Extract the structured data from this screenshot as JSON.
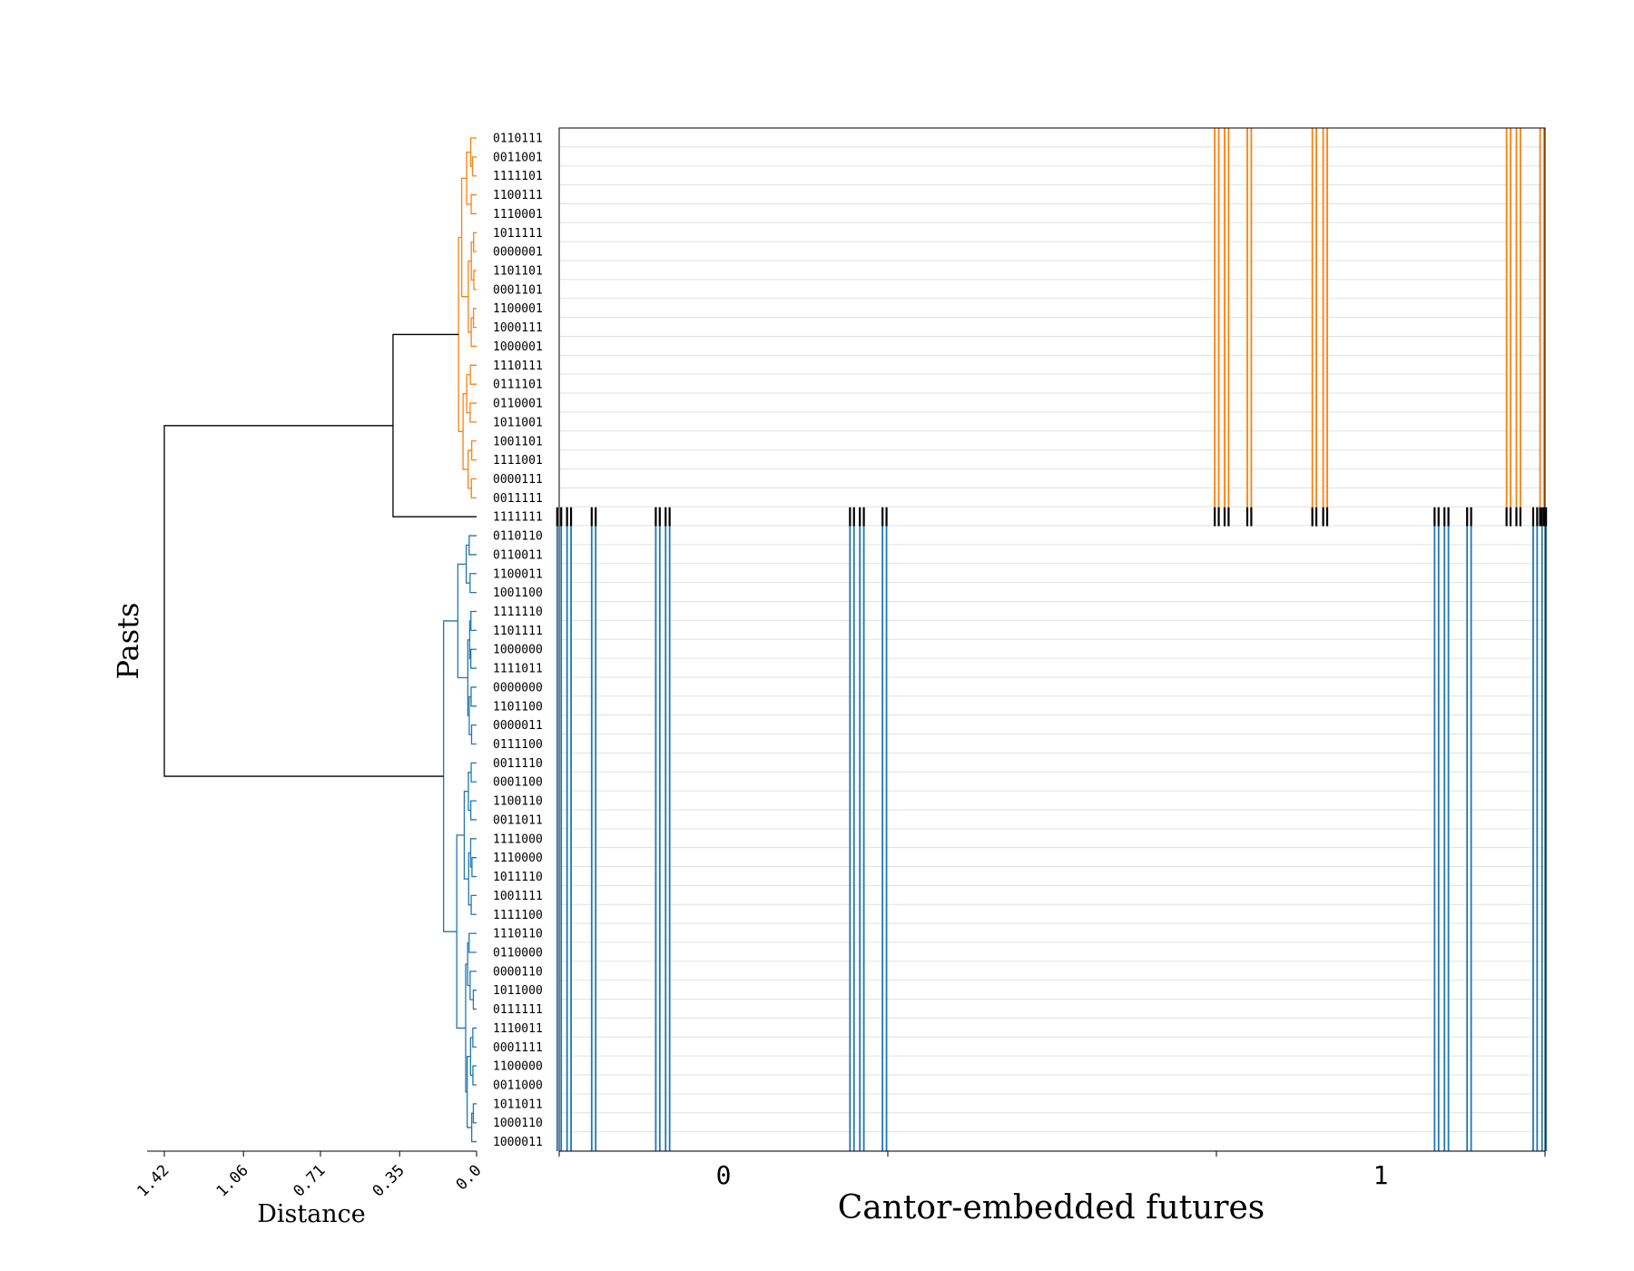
{
  "chart_data": {
    "type": "dendrogram-with-raster",
    "ylabel": "Pasts",
    "dendrogram_xlabel": "Distance",
    "dendrogram_ticks": [
      "1.42",
      "1.06",
      "0.71",
      "0.35",
      "0.0"
    ],
    "dendrogram_tick_values": [
      1.42,
      1.06,
      0.71,
      0.35,
      0.0
    ],
    "xlabel": "Cantor-embedded futures",
    "raster_ticks": [
      "0",
      "1"
    ],
    "colors": {
      "cluster_1": "#ff7f0e",
      "cluster_2": "#1f77b4",
      "root": "#000000",
      "grid": "#e0e0e0"
    },
    "leaves": [
      {
        "label": "0110111",
        "cluster": 1
      },
      {
        "label": "0011001",
        "cluster": 1
      },
      {
        "label": "1111101",
        "cluster": 1
      },
      {
        "label": "1100111",
        "cluster": 1
      },
      {
        "label": "1110001",
        "cluster": 1
      },
      {
        "label": "1011111",
        "cluster": 1
      },
      {
        "label": "0000001",
        "cluster": 1
      },
      {
        "label": "1101101",
        "cluster": 1
      },
      {
        "label": "0001101",
        "cluster": 1
      },
      {
        "label": "1100001",
        "cluster": 1
      },
      {
        "label": "1000111",
        "cluster": 1
      },
      {
        "label": "1000001",
        "cluster": 1
      },
      {
        "label": "1110111",
        "cluster": 1
      },
      {
        "label": "0111101",
        "cluster": 1
      },
      {
        "label": "0110001",
        "cluster": 1
      },
      {
        "label": "1011001",
        "cluster": 1
      },
      {
        "label": "1001101",
        "cluster": 1
      },
      {
        "label": "1111001",
        "cluster": 1
      },
      {
        "label": "0000111",
        "cluster": 1
      },
      {
        "label": "0011111",
        "cluster": 1
      },
      {
        "label": "1111111",
        "cluster": 0
      },
      {
        "label": "0110110",
        "cluster": 2
      },
      {
        "label": "0110011",
        "cluster": 2
      },
      {
        "label": "1100011",
        "cluster": 2
      },
      {
        "label": "1001100",
        "cluster": 2
      },
      {
        "label": "1111110",
        "cluster": 2
      },
      {
        "label": "1101111",
        "cluster": 2
      },
      {
        "label": "1000000",
        "cluster": 2
      },
      {
        "label": "1111011",
        "cluster": 2
      },
      {
        "label": "0000000",
        "cluster": 2
      },
      {
        "label": "1101100",
        "cluster": 2
      },
      {
        "label": "0000011",
        "cluster": 2
      },
      {
        "label": "0111100",
        "cluster": 2
      },
      {
        "label": "0011110",
        "cluster": 2
      },
      {
        "label": "0001100",
        "cluster": 2
      },
      {
        "label": "1100110",
        "cluster": 2
      },
      {
        "label": "0011011",
        "cluster": 2
      },
      {
        "label": "1111000",
        "cluster": 2
      },
      {
        "label": "1110000",
        "cluster": 2
      },
      {
        "label": "1011110",
        "cluster": 2
      },
      {
        "label": "1001111",
        "cluster": 2
      },
      {
        "label": "1111100",
        "cluster": 2
      },
      {
        "label": "1110110",
        "cluster": 2
      },
      {
        "label": "0110000",
        "cluster": 2
      },
      {
        "label": "0000110",
        "cluster": 2
      },
      {
        "label": "1011000",
        "cluster": 2
      },
      {
        "label": "0111111",
        "cluster": 2
      },
      {
        "label": "1110011",
        "cluster": 2
      },
      {
        "label": "0001111",
        "cluster": 2
      },
      {
        "label": "1100000",
        "cluster": 2
      },
      {
        "label": "0011000",
        "cluster": 2
      },
      {
        "label": "1011011",
        "cluster": 2
      },
      {
        "label": "1000110",
        "cluster": 2
      },
      {
        "label": "1000011",
        "cluster": 2
      }
    ],
    "futures_cluster_1": [
      0.0,
      0.01,
      0.035,
      0.1,
      0.11,
      0.297,
      0.307,
      0.33,
      0.89,
      0.9,
      0.923,
      0.99,
      0.999
    ],
    "futures_cluster_2": [
      0.667,
      0.677,
      0.7,
      0.766,
      0.777,
      0.963,
      0.973,
      0.997
    ]
  }
}
